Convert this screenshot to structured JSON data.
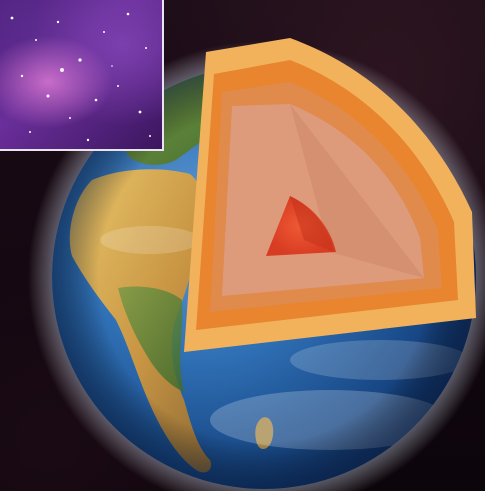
{
  "scene": {
    "subject": "earth-cutaway",
    "colors": {
      "space_bg": "#120710",
      "ocean": "#2f6fb4",
      "ocean_dark": "#184987",
      "land_desert": "#d8b15a",
      "land_green": "#5f8b3c",
      "crust": "#f2b25c",
      "mantle_outer": "#e8852e",
      "mantle_inner": "#d99a78",
      "outer_core": "#dd9b7c",
      "inner_core": "#e4452b",
      "nebula_pink": "#c86cc9",
      "nebula_purple": "#6b2f9b",
      "inset_border": "#e9e4ef"
    },
    "icons": [
      "nebula-inset-image",
      "earth-globe-image",
      "earth-layer-cutaway"
    ]
  }
}
